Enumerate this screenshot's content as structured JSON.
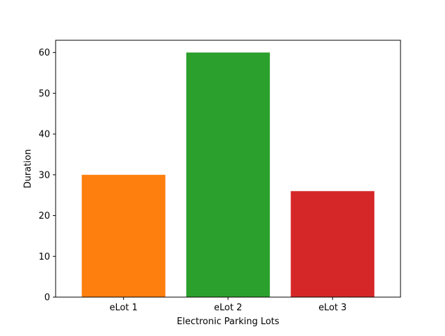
{
  "chart_data": {
    "type": "bar",
    "categories": [
      "eLot 1",
      "eLot 2",
      "eLot 3"
    ],
    "values": [
      30,
      60,
      26
    ],
    "colors": [
      "#ff7f0e",
      "#2ca02c",
      "#d62728"
    ],
    "title": "",
    "xlabel": "Electronic Parking Lots",
    "ylabel": "Duration",
    "ylim": [
      0,
      63
    ],
    "yticks": [
      0,
      10,
      20,
      30,
      40,
      50,
      60
    ],
    "grid": false,
    "legend": "none"
  }
}
